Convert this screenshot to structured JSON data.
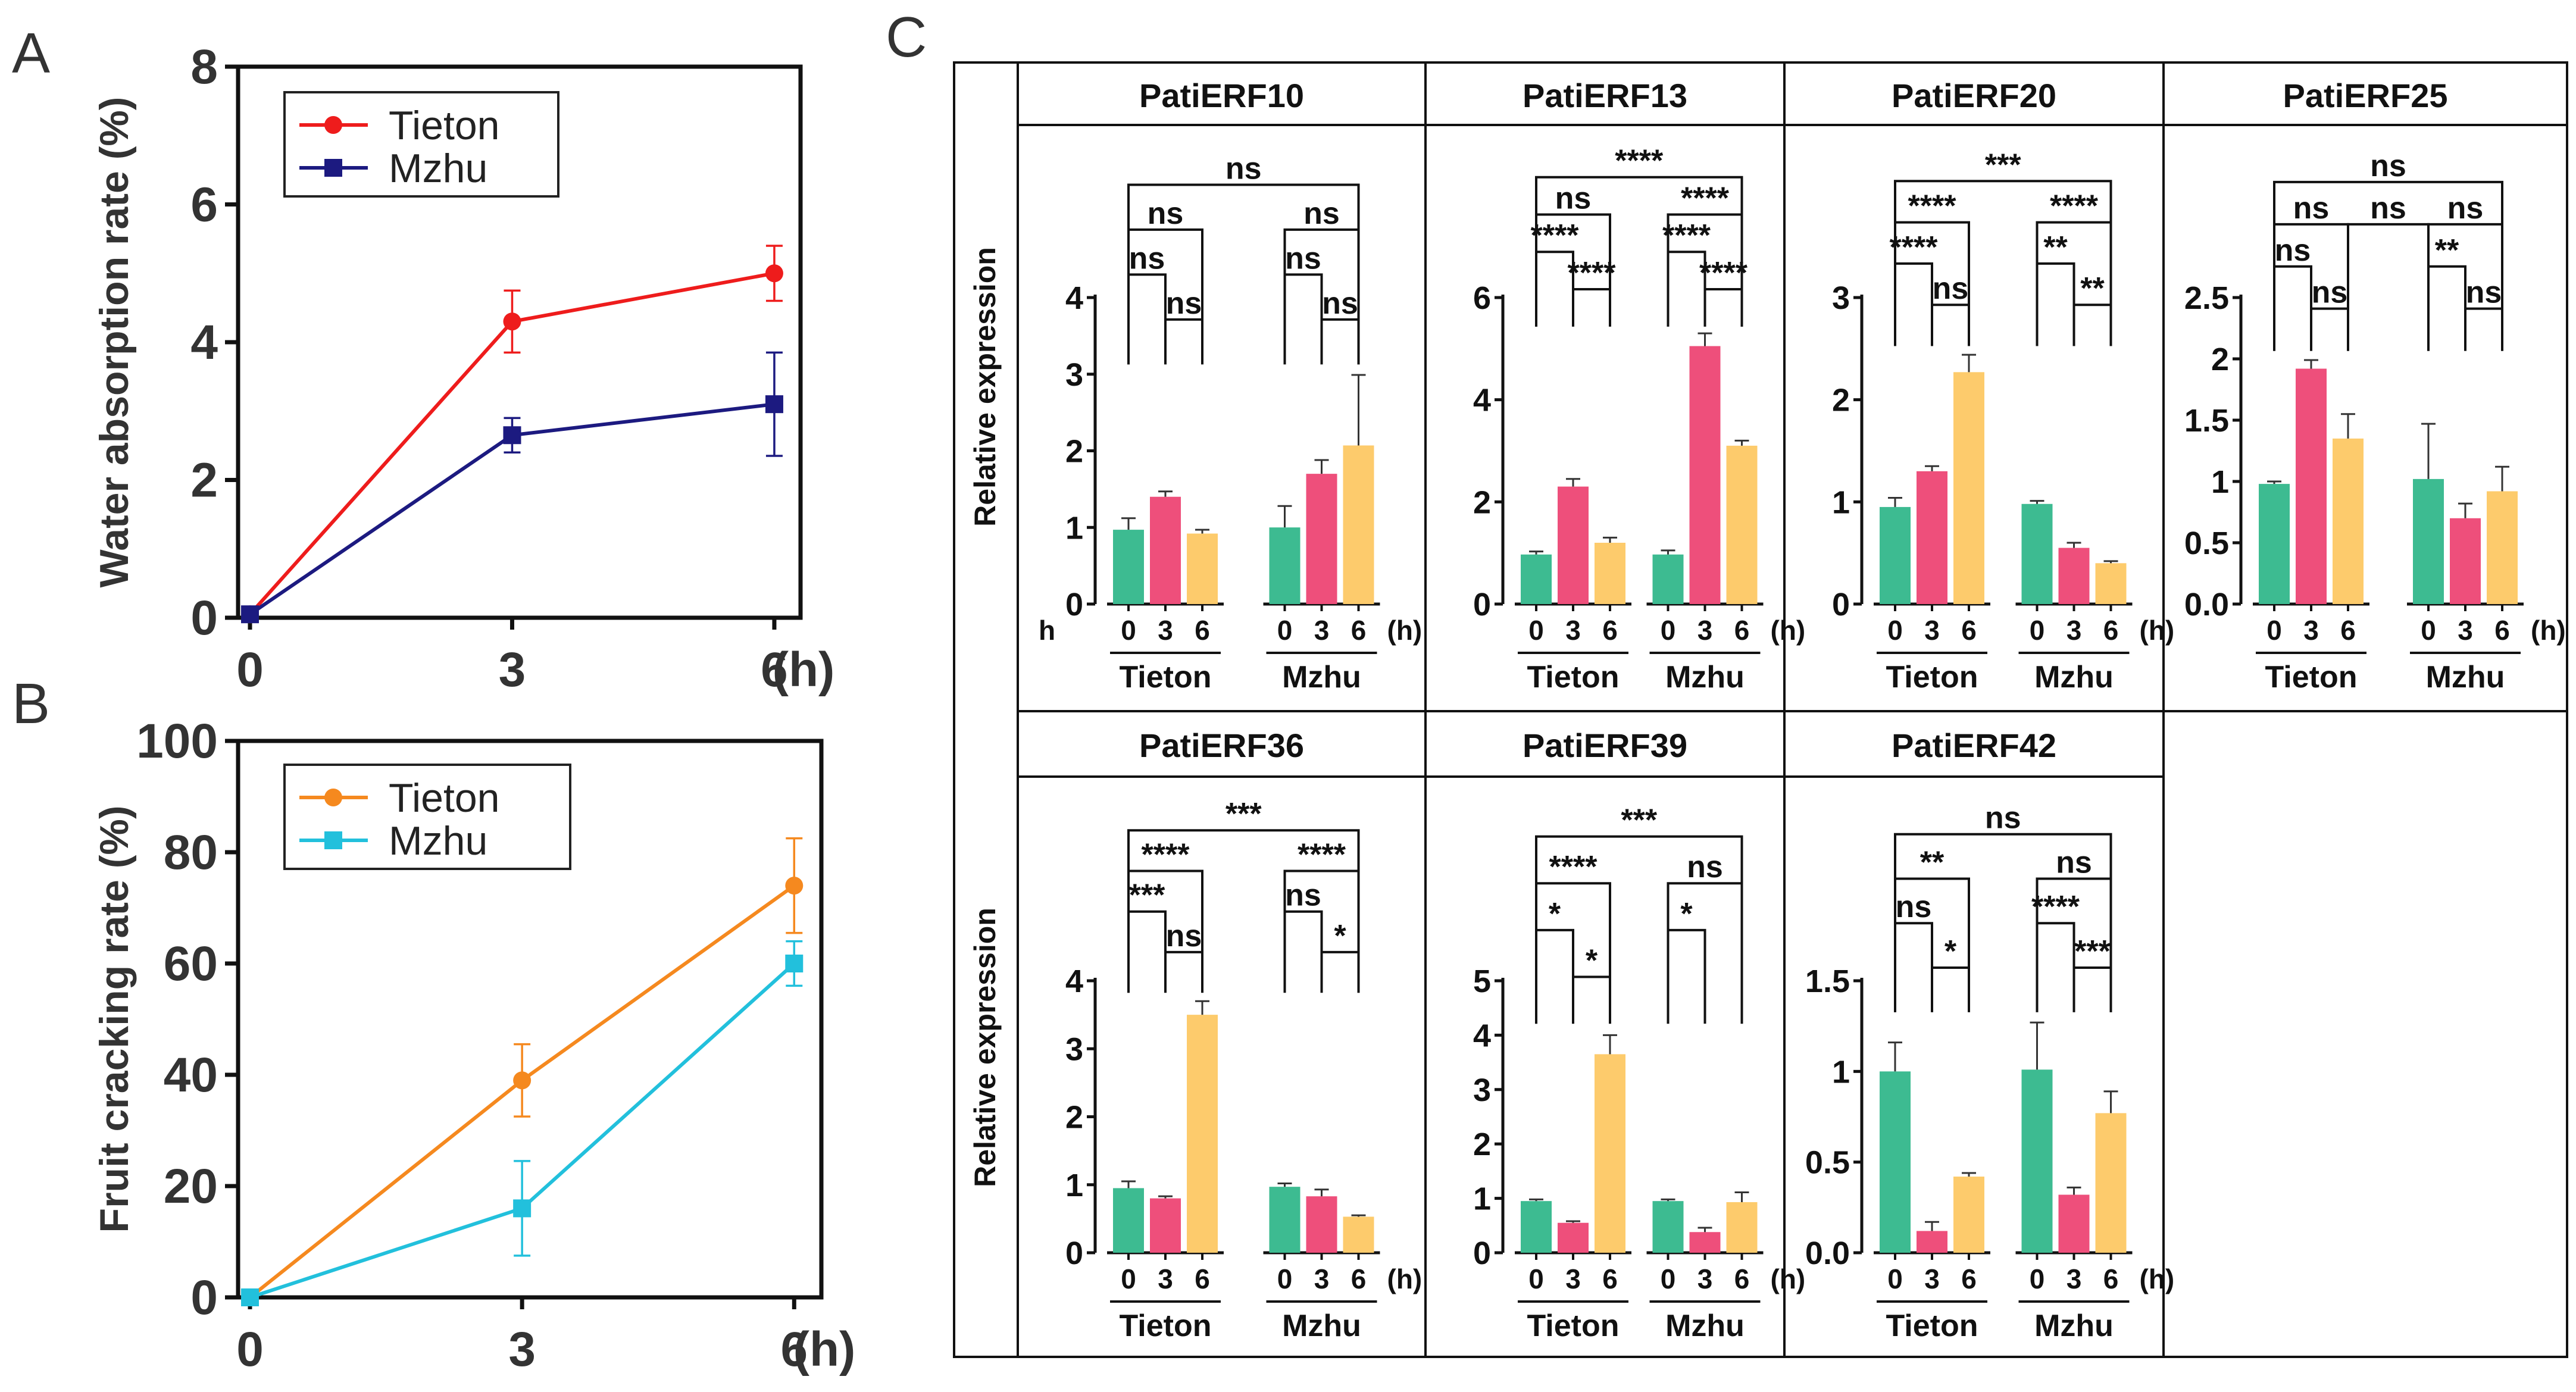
{
  "panel_labels": [
    "A",
    "B",
    "C"
  ],
  "colors": {
    "tieton_a": "#ee1c1c",
    "mzhu_a": "#1c1a80",
    "tieton_b": "#f5891f",
    "mzhu_b": "#22c0dc",
    "bar_0h": "#3dbb91",
    "bar_3h": "#ee4f7b",
    "bar_6h": "#fdcb6c"
  },
  "chart_data": [
    {
      "id": "A",
      "type": "line",
      "title": "",
      "xlabel": "(h)",
      "ylabel": "Water absorption rate (%)",
      "x": [
        0,
        3,
        6
      ],
      "xticks": [
        "0",
        "3",
        "6"
      ],
      "ylim": [
        0,
        8
      ],
      "yticks": [
        "0",
        "2",
        "4",
        "6",
        "8"
      ],
      "legend_position": "top-left",
      "series": [
        {
          "name": "Tieton",
          "marker": "circle",
          "values": [
            0.05,
            4.3,
            5.0
          ],
          "errors": [
            0.05,
            0.45,
            0.4
          ]
        },
        {
          "name": "Mzhu",
          "marker": "square",
          "values": [
            0.05,
            2.65,
            3.1
          ],
          "errors": [
            0.05,
            0.25,
            0.75
          ]
        }
      ]
    },
    {
      "id": "B",
      "type": "line",
      "title": "",
      "xlabel": "(h)",
      "ylabel": "Fruit cracking rate (%)",
      "x": [
        0,
        3,
        6
      ],
      "xticks": [
        "0",
        "3",
        "6"
      ],
      "ylim": [
        0,
        100
      ],
      "yticks": [
        "0",
        "20",
        "40",
        "60",
        "80",
        "100"
      ],
      "legend_position": "top-left",
      "series": [
        {
          "name": "Tieton",
          "marker": "circle",
          "values": [
            0,
            39,
            74
          ],
          "errors": [
            0,
            6.5,
            8.5
          ]
        },
        {
          "name": "Mzhu",
          "marker": "square",
          "values": [
            0,
            16,
            60
          ],
          "errors": [
            0,
            8.5,
            4
          ]
        }
      ]
    },
    {
      "id": "C",
      "type": "bar",
      "ylabel": "Relative expression",
      "xticks": [
        "0",
        "3",
        "6"
      ],
      "x_unit": "(h)",
      "groups": [
        "Tieton",
        "Mzhu"
      ],
      "genes": [
        {
          "name": "PatiERF10",
          "ymax": 4,
          "yticks": [
            "0",
            "1",
            "2",
            "3",
            "4"
          ],
          "tieton": [
            0.97,
            1.4,
            0.92
          ],
          "tieton_err": [
            0.15,
            0.07,
            0.05
          ],
          "mzhu": [
            1.0,
            1.7,
            2.07
          ],
          "mzhu_err": [
            0.28,
            0.18,
            0.92
          ],
          "zero_prefix": "h",
          "sig": [
            "ns",
            "ns",
            "ns",
            "ns",
            "ns",
            "ns",
            "ns"
          ]
        },
        {
          "name": "PatiERF13",
          "ymax": 6,
          "yticks": [
            "0",
            "2",
            "4",
            "6"
          ],
          "tieton": [
            0.97,
            2.3,
            1.2
          ],
          "tieton_err": [
            0.06,
            0.15,
            0.1
          ],
          "mzhu": [
            0.97,
            5.05,
            3.1
          ],
          "mzhu_err": [
            0.08,
            0.25,
            0.1
          ],
          "sig": [
            "****",
            "ns",
            "****",
            "****",
            "****",
            "****",
            "****"
          ]
        },
        {
          "name": "PatiERF20",
          "ymax": 3,
          "yticks": [
            "0",
            "1",
            "2",
            "3"
          ],
          "tieton": [
            0.95,
            1.3,
            2.27
          ],
          "tieton_err": [
            0.09,
            0.05,
            0.17
          ],
          "mzhu": [
            0.98,
            0.55,
            0.4
          ],
          "mzhu_err": [
            0.03,
            0.05,
            0.02
          ],
          "sig": [
            "***",
            "****",
            "****",
            "****",
            "ns",
            "**",
            "**"
          ]
        },
        {
          "name": "PatiERF25",
          "ymax": 2.5,
          "yticks": [
            "0.0",
            "0.5",
            "1",
            "1.5",
            "2",
            "2.5"
          ],
          "tieton": [
            0.98,
            1.92,
            1.35
          ],
          "tieton_err": [
            0.02,
            0.07,
            0.2
          ],
          "mzhu": [
            1.02,
            0.7,
            0.92
          ],
          "mzhu_err": [
            0.45,
            0.12,
            0.2
          ],
          "sig": [
            "ns",
            "ns",
            "ns",
            "ns",
            "ns",
            "**",
            "ns",
            "ns"
          ]
        },
        {
          "name": "PatiERF36",
          "ymax": 4,
          "yticks": [
            "0",
            "1",
            "2",
            "3",
            "4"
          ],
          "tieton": [
            0.95,
            0.8,
            3.5
          ],
          "tieton_err": [
            0.1,
            0.03,
            0.2
          ],
          "mzhu": [
            0.97,
            0.83,
            0.53
          ],
          "mzhu_err": [
            0.05,
            0.1,
            0.02
          ],
          "sig": [
            "***",
            "****",
            "****",
            "***",
            "ns",
            "ns",
            "*"
          ]
        },
        {
          "name": "PatiERF39",
          "ymax": 5,
          "yticks": [
            "0",
            "1",
            "2",
            "3",
            "4",
            "5"
          ],
          "tieton": [
            0.95,
            0.55,
            3.65
          ],
          "tieton_err": [
            0.03,
            0.03,
            0.35
          ],
          "mzhu": [
            0.95,
            0.38,
            0.93
          ],
          "mzhu_err": [
            0.03,
            0.08,
            0.18
          ],
          "sig": [
            "***",
            "****",
            "ns",
            "*",
            "*",
            "*"
          ]
        },
        {
          "name": "PatiERF42",
          "ymax": 1.5,
          "yticks": [
            "0.0",
            "0.5",
            "1",
            "1.5"
          ],
          "tieton": [
            1.0,
            0.12,
            0.42
          ],
          "tieton_err": [
            0.16,
            0.05,
            0.02
          ],
          "mzhu": [
            1.01,
            0.32,
            0.77
          ],
          "mzhu_err": [
            0.26,
            0.04,
            0.12
          ],
          "sig": [
            "ns",
            "**",
            "ns",
            "ns",
            "*",
            "****",
            "***"
          ]
        }
      ]
    }
  ]
}
